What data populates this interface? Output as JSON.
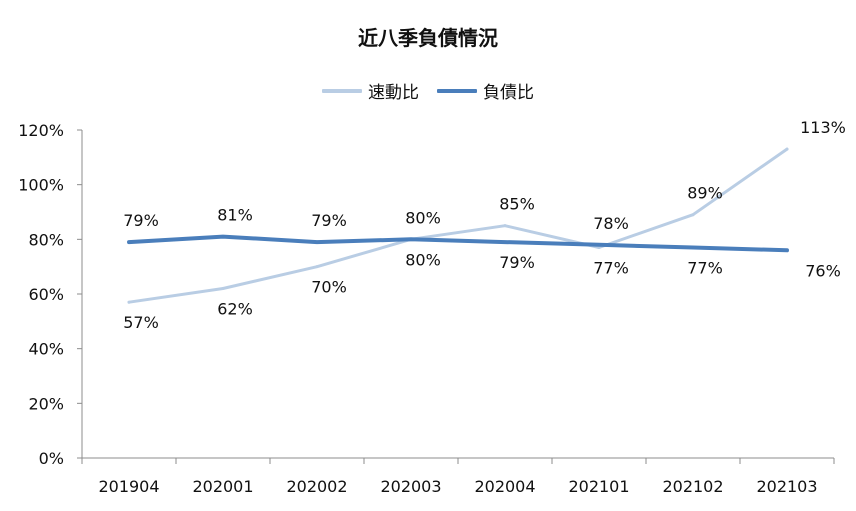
{
  "chart_data": {
    "type": "line",
    "title": "近八季負債情況",
    "categories": [
      "201904",
      "202001",
      "202002",
      "202003",
      "202004",
      "202101",
      "202102",
      "202103"
    ],
    "series": [
      {
        "name": "速動比",
        "values": [
          57,
          62,
          70,
          80,
          85,
          77,
          89,
          113
        ],
        "labels": [
          "57%",
          "62%",
          "70%",
          "80%",
          "85%",
          "77%",
          "89%",
          "113%"
        ],
        "color": "#b9cde4"
      },
      {
        "name": "負債比",
        "values": [
          79,
          81,
          79,
          80,
          79,
          78,
          77,
          76
        ],
        "labels": [
          "79%",
          "81%",
          "79%",
          "80%",
          "79%",
          "78%",
          "77%",
          "76%"
        ],
        "color": "#4a7ebb"
      }
    ],
    "ylim": [
      0,
      120
    ],
    "yticks": [
      "0%",
      "20%",
      "40%",
      "60%",
      "80%",
      "100%",
      "120%"
    ],
    "xlabel": "",
    "ylabel": "",
    "legend_position": "top",
    "grid": false
  }
}
